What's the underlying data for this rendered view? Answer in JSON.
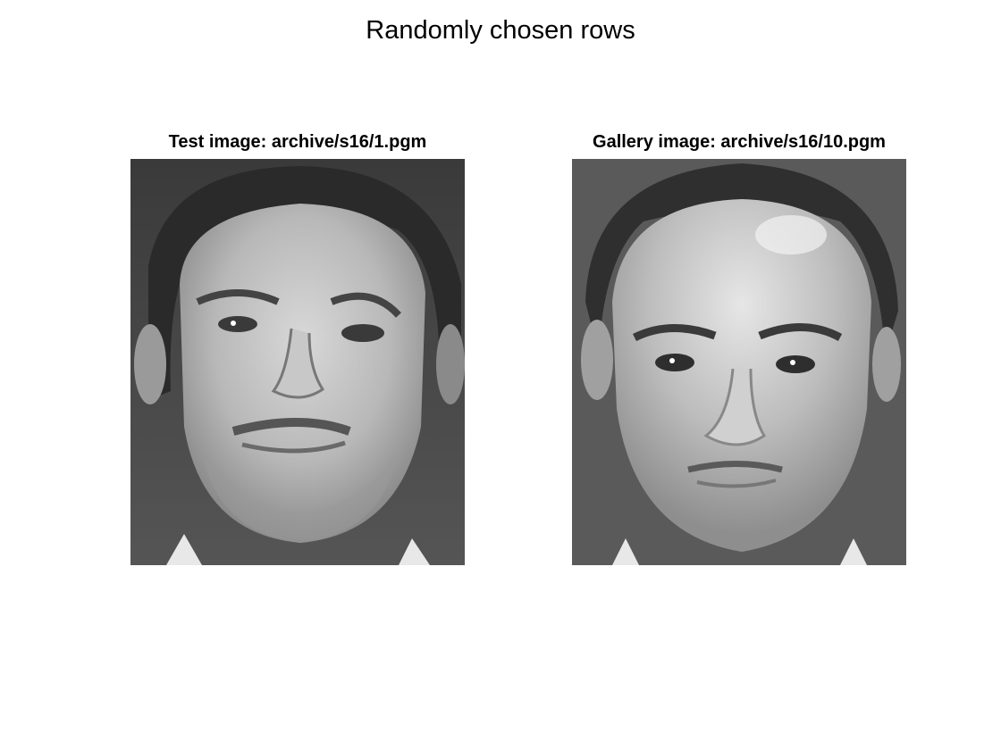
{
  "figure": {
    "title": "Randomly chosen rows"
  },
  "panels": [
    {
      "title": "Test image: archive/s16/1.pgm",
      "image_description": "grayscale face photo, man with short dark hair, slight stubble, head slightly tilted"
    },
    {
      "title": "Gallery image: archive/s16/10.pgm",
      "image_description": "grayscale face photo, same man, frontal view, bright forehead"
    }
  ]
}
